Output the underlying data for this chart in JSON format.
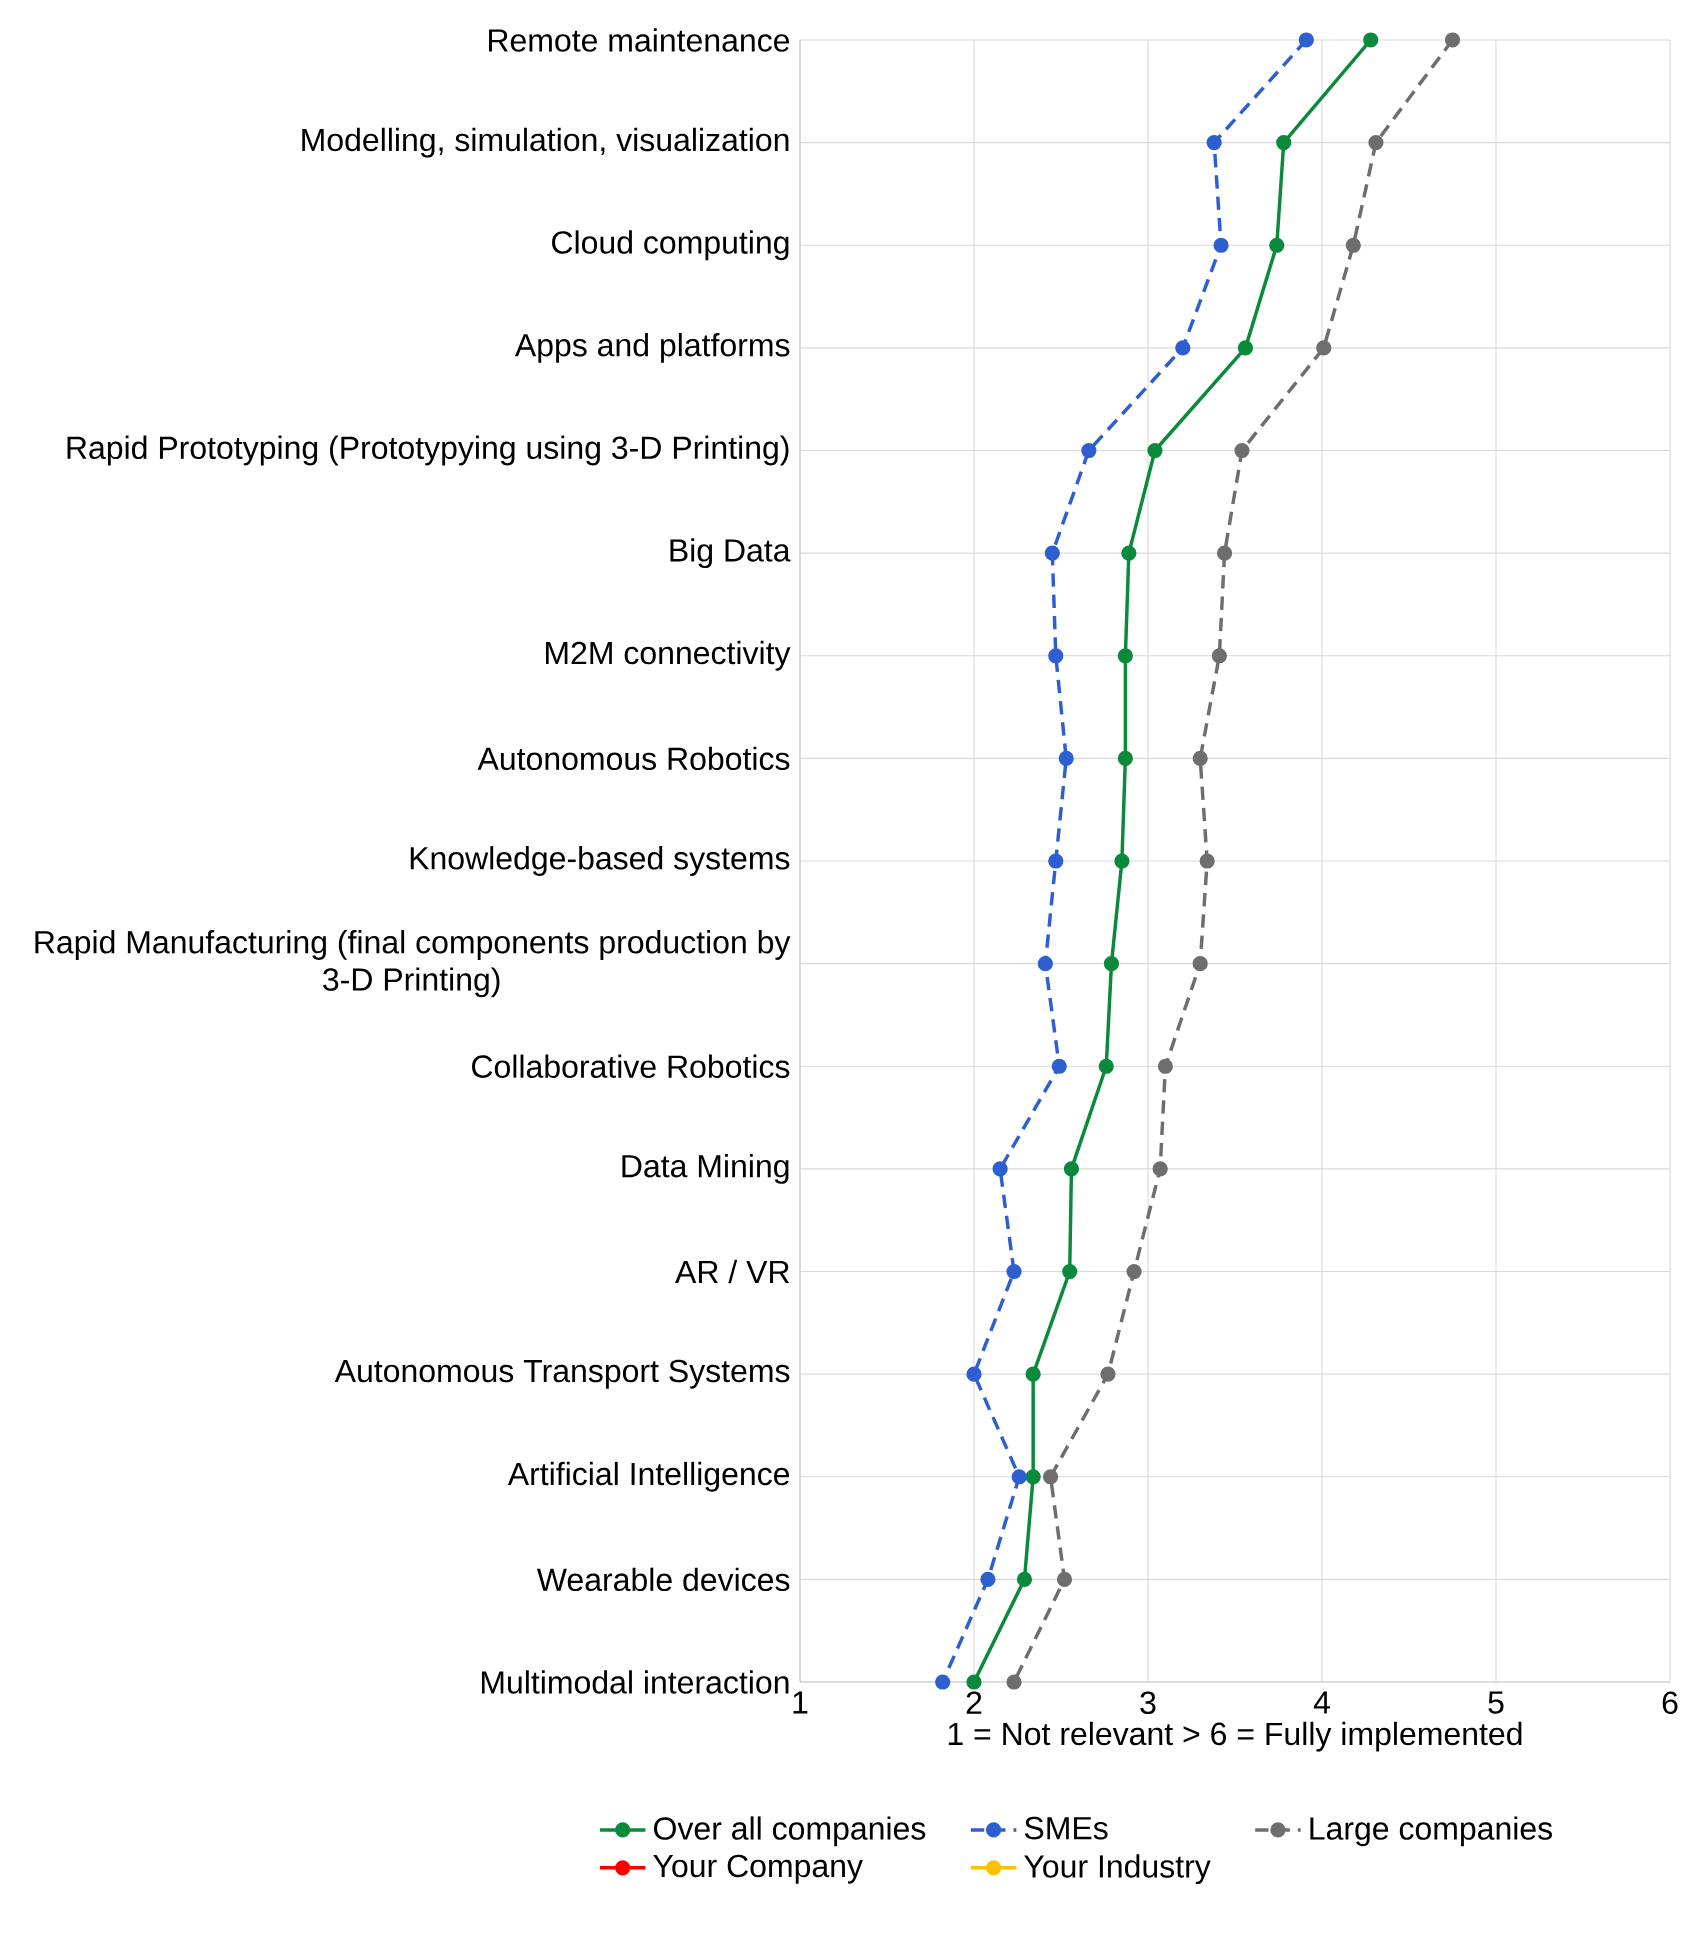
{
  "chart_data": {
    "type": "line",
    "orientation": "horizontal",
    "xlabel": "1 = Not relevant > 6 = Fully implemented",
    "categories": [
      "Remote maintenance",
      "Modelling, simulation, visualization",
      "Cloud computing",
      "Apps and platforms",
      "Rapid Prototyping (Prototypying using 3-D Printing)",
      "Big Data",
      "M2M connectivity",
      "Autonomous Robotics",
      "Knowledge-based systems",
      "Rapid Manufacturing (final components production by 3-D Printing)",
      "Collaborative Robotics",
      "Data Mining",
      "AR / VR",
      "Autonomous Transport Systems",
      "Artificial Intelligence",
      "Wearable devices",
      "Multimodal interaction"
    ],
    "xlim": [
      1,
      6
    ],
    "xticks": [
      1,
      2,
      3,
      4,
      5,
      6
    ],
    "grid": true,
    "legend": "bottom",
    "marker": "circle",
    "series": [
      {
        "name": "Over all companies",
        "color": "#0a8a3a",
        "line_style": "solid",
        "values": [
          4.28,
          3.78,
          3.74,
          3.56,
          3.04,
          2.89,
          2.87,
          2.87,
          2.85,
          2.79,
          2.76,
          2.56,
          2.55,
          2.34,
          2.34,
          2.29,
          2.0
        ]
      },
      {
        "name": "SMEs",
        "color": "#2e5fd0",
        "line_style": "dashed",
        "values": [
          3.91,
          3.38,
          3.42,
          3.2,
          2.66,
          2.45,
          2.47,
          2.53,
          2.47,
          2.41,
          2.49,
          2.15,
          2.23,
          2.0,
          2.26,
          2.08,
          1.82
        ]
      },
      {
        "name": "Large companies",
        "color": "#6e6e6e",
        "line_style": "dashed",
        "values": [
          4.75,
          4.31,
          4.18,
          4.01,
          3.54,
          3.44,
          3.41,
          3.3,
          3.34,
          3.3,
          3.1,
          3.07,
          2.92,
          2.77,
          2.44,
          2.52,
          2.23
        ]
      },
      {
        "name": "Your Company",
        "color": "#ff0000",
        "line_style": "solid",
        "values": [
          null,
          null,
          null,
          null,
          null,
          null,
          null,
          null,
          null,
          null,
          null,
          null,
          null,
          null,
          null,
          null,
          null
        ]
      },
      {
        "name": "Your Industry",
        "color": "#ffc000",
        "line_style": "solid",
        "values": [
          null,
          null,
          null,
          null,
          null,
          null,
          null,
          null,
          null,
          null,
          null,
          null,
          null,
          null,
          null,
          null,
          null
        ]
      }
    ]
  }
}
